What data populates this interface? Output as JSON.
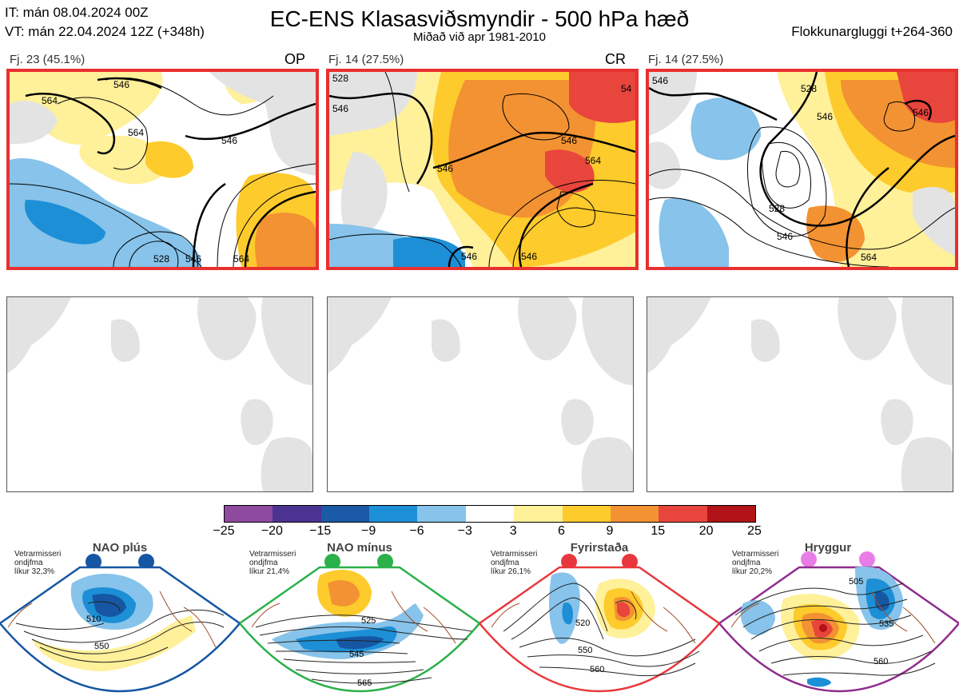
{
  "header": {
    "it": "IT: mán 08.04.2024 00Z",
    "vt": "VT: mán 22.04.2024 12Z  (+348h)",
    "title": "EC-ENS Klasasviðsmyndir - 500 hPa hæð",
    "subtitle": "Miðað við apr 1981-2010",
    "window": "Flokkunargluggi t+264-360"
  },
  "panels": [
    {
      "label": "Fj. 23 (45.1%)",
      "tag": "OP",
      "contours": [
        "546",
        "564",
        "564",
        "546",
        "528",
        "546",
        "564"
      ]
    },
    {
      "label": "Fj. 14 (27.5%)",
      "tag": "CR",
      "contours": [
        "528",
        "546",
        "546",
        "546",
        "564",
        "546",
        "546",
        "54"
      ]
    },
    {
      "label": "Fj. 14 (27.5%)",
      "tag": "",
      "contours": [
        "546",
        "528",
        "546",
        "528",
        "546",
        "546",
        "564"
      ]
    }
  ],
  "colorbar": {
    "ticks": [
      "−25",
      "−20",
      "−15",
      "−9",
      "−6",
      "−3",
      "3",
      "6",
      "9",
      "15",
      "20",
      "25"
    ],
    "colors": [
      "#8e4a9e",
      "#4b3391",
      "#1b5aa6",
      "#1d8fd6",
      "#87c3ea",
      "#ffffff",
      "#fff09a",
      "#fdcb2c",
      "#f39232",
      "#e8453c",
      "#b11318"
    ]
  },
  "regimes": [
    {
      "title": "NAO plús",
      "note": [
        "Vetrarmisseri",
        "ondjfma",
        "líkur 32,3%"
      ],
      "color": "#1656a3",
      "labels": [
        "510",
        "550"
      ]
    },
    {
      "title": "NAO mínus",
      "note": [
        "Vetrarmisseri",
        "ondjfma",
        "líkur 21,4%"
      ],
      "color": "#2bb04a",
      "labels": [
        "525",
        "545",
        "565"
      ]
    },
    {
      "title": "Fyrirstaða",
      "note": [
        "Vetrarmisseri",
        "ondjfma",
        "líkur 26,1%"
      ],
      "color": "#e8383d",
      "labels": [
        "520",
        "550",
        "560"
      ]
    },
    {
      "title": "Hryggur",
      "note": [
        "Vetrarmisseri",
        "ondjfma",
        "líkur 20,2%"
      ],
      "color": "#8e2c8c",
      "labels": [
        "505",
        "535",
        "560"
      ]
    }
  ]
}
